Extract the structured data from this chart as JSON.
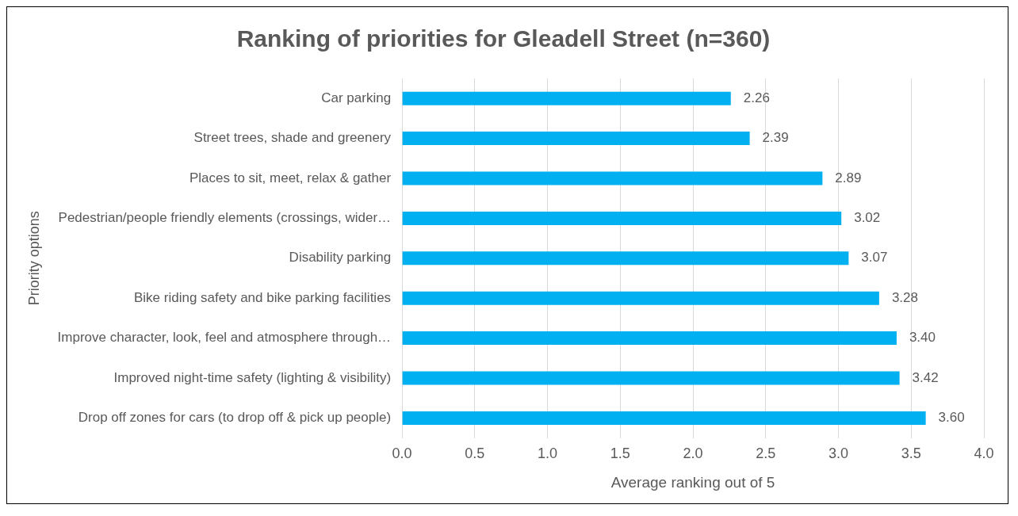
{
  "chart_data": {
    "type": "bar",
    "orientation": "horizontal",
    "title": "Ranking of priorities for Gleadell Street (n=360)",
    "xlabel": "Average ranking out of 5",
    "ylabel": "Priority options",
    "categories": [
      "Car parking",
      "Street trees, shade and greenery",
      "Places to sit, meet, relax & gather",
      "Pedestrian/people friendly elements (crossings, wider…",
      "Disability parking",
      "Bike riding safety and bike parking facilities",
      "Improve character, look, feel and atmosphere through…",
      "Improved night-time safety (lighting & visibility)",
      "Drop off zones for cars (to drop off & pick up people)"
    ],
    "values": [
      2.26,
      2.39,
      2.89,
      3.02,
      3.07,
      3.28,
      3.4,
      3.42,
      3.6
    ],
    "value_labels": [
      "2.26",
      "2.39",
      "2.89",
      "3.02",
      "3.07",
      "3.28",
      "3.40",
      "3.42",
      "3.60"
    ],
    "color": "#00b0f0",
    "xlim": [
      0,
      4
    ],
    "xticks": [
      {
        "value": 0,
        "label": "0.0"
      },
      {
        "value": 0.5,
        "label": "0.5"
      },
      {
        "value": 1,
        "label": "1.0"
      },
      {
        "value": 1.5,
        "label": "1.5"
      },
      {
        "value": 2,
        "label": "2.0"
      },
      {
        "value": 2.5,
        "label": "2.5"
      },
      {
        "value": 3,
        "label": "3.0"
      },
      {
        "value": 3.5,
        "label": "3.5"
      },
      {
        "value": 4,
        "label": "4.0"
      }
    ],
    "grid": "x",
    "legend": false
  }
}
